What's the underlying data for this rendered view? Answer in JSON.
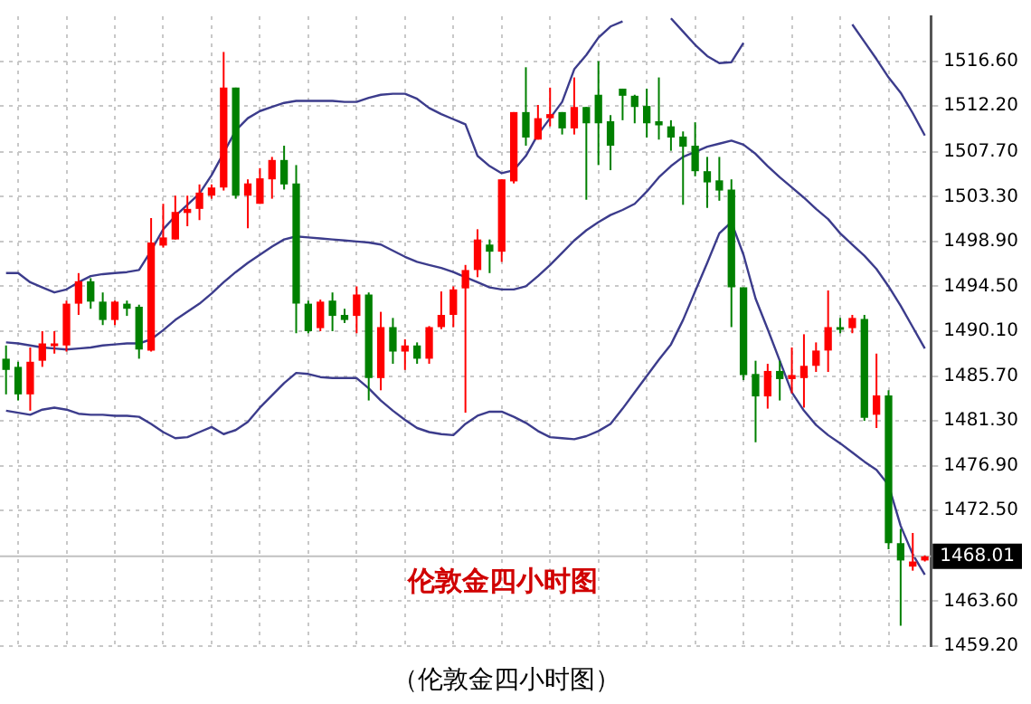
{
  "chart_data": {
    "type": "candlestick",
    "categories": [
      null,
      null,
      null,
      null,
      null,
      null,
      null,
      null,
      null,
      null,
      null,
      null,
      null,
      null,
      null,
      null,
      null,
      null,
      null,
      null,
      null,
      null,
      null,
      null,
      null,
      null,
      null,
      null,
      null,
      null,
      null,
      null,
      null,
      null,
      null,
      null,
      null,
      null,
      null,
      null,
      null,
      null,
      null,
      null,
      null,
      null,
      null,
      null,
      null,
      null,
      null,
      null,
      null,
      null,
      null,
      null,
      null,
      null,
      null,
      null,
      null,
      null,
      null,
      null,
      null,
      null,
      null,
      null,
      null,
      null,
      null,
      null,
      null,
      null,
      null,
      null,
      null
    ],
    "ohlc": [
      [
        1487.4,
        1488.7,
        1483.9,
        1486.3
      ],
      [
        1486.6,
        1487.1,
        1483.3,
        1483.9
      ],
      [
        1483.9,
        1488.5,
        1482.3,
        1487.1
      ],
      [
        1487.2,
        1490.1,
        1486.6,
        1488.9
      ],
      [
        1488.7,
        1490.1,
        1487.9,
        1488.9
      ],
      [
        1488.7,
        1493.1,
        1488.1,
        1492.8
      ],
      [
        1492.8,
        1495.8,
        1491.7,
        1495.0
      ],
      [
        1495.0,
        1495.3,
        1492.3,
        1493.0
      ],
      [
        1493.0,
        1493.9,
        1490.7,
        1491.2
      ],
      [
        1491.2,
        1493.1,
        1490.7,
        1493.0
      ],
      [
        1492.8,
        1493.1,
        1491.6,
        1492.3
      ],
      [
        1492.5,
        1492.7,
        1487.4,
        1488.3
      ],
      [
        1488.2,
        1501.2,
        1488.1,
        1498.8
      ],
      [
        1498.5,
        1502.6,
        1498.3,
        1499.3
      ],
      [
        1499.1,
        1503.4,
        1499.1,
        1501.8
      ],
      [
        1501.7,
        1503.4,
        1500.4,
        1502.1
      ],
      [
        1502.1,
        1504.5,
        1501.0,
        1503.7
      ],
      [
        1503.4,
        1504.5,
        1503.1,
        1504.2
      ],
      [
        1504.2,
        1517.5,
        1503.9,
        1514.0
      ],
      [
        1514.0,
        1514.0,
        1503.1,
        1503.4
      ],
      [
        1503.4,
        1505.0,
        1500.2,
        1504.6
      ],
      [
        1502.6,
        1506.1,
        1502.6,
        1505.1
      ],
      [
        1505.0,
        1507.2,
        1503.1,
        1506.9
      ],
      [
        1506.9,
        1508.3,
        1504.0,
        1504.5
      ],
      [
        1504.6,
        1506.4,
        1489.9,
        1492.8
      ],
      [
        1492.8,
        1493.1,
        1489.9,
        1490.1
      ],
      [
        1490.4,
        1493.2,
        1490.1,
        1493.0
      ],
      [
        1493.1,
        1493.9,
        1490.1,
        1491.6
      ],
      [
        1491.7,
        1492.3,
        1490.9,
        1491.2
      ],
      [
        1491.6,
        1494.5,
        1489.9,
        1493.7
      ],
      [
        1493.7,
        1493.9,
        1483.3,
        1485.5
      ],
      [
        1485.5,
        1492.0,
        1484.3,
        1490.5
      ],
      [
        1490.5,
        1491.4,
        1486.9,
        1488.1
      ],
      [
        1488.1,
        1489.3,
        1486.3,
        1488.7
      ],
      [
        1488.7,
        1489.0,
        1486.9,
        1487.4
      ],
      [
        1487.4,
        1490.6,
        1486.9,
        1490.5
      ],
      [
        1490.5,
        1494.0,
        1490.3,
        1491.7
      ],
      [
        1491.7,
        1494.5,
        1490.5,
        1494.2
      ],
      [
        1494.3,
        1496.6,
        1482.1,
        1496.1
      ],
      [
        1496.1,
        1500.1,
        1495.4,
        1499.1
      ],
      [
        1498.6,
        1499.1,
        1495.8,
        1497.9
      ],
      [
        1497.9,
        1505.0,
        1496.9,
        1505.0
      ],
      [
        1504.8,
        1511.6,
        1504.6,
        1511.6
      ],
      [
        1511.6,
        1516.0,
        1508.3,
        1509.1
      ],
      [
        1508.9,
        1512.3,
        1508.9,
        1511.0
      ],
      [
        1511.0,
        1514.0,
        1510.2,
        1511.4
      ],
      [
        1511.6,
        1511.6,
        1509.4,
        1510.0
      ],
      [
        1510.0,
        1515.0,
        1509.4,
        1512.1
      ],
      [
        1512.1,
        1512.1,
        1503.0,
        1510.5
      ],
      [
        1513.3,
        1516.6,
        1506.4,
        1510.5
      ],
      [
        1510.7,
        1511.3,
        1505.9,
        1508.3
      ],
      [
        1513.9,
        1513.9,
        1510.8,
        1513.2
      ],
      [
        1513.2,
        1513.3,
        1510.5,
        1512.1
      ],
      [
        1512.2,
        1513.9,
        1509.1,
        1510.5
      ],
      [
        1510.7,
        1515.0,
        1508.9,
        1510.3
      ],
      [
        1510.2,
        1510.8,
        1507.8,
        1509.1
      ],
      [
        1509.2,
        1509.7,
        1502.5,
        1508.2
      ],
      [
        1508.3,
        1510.6,
        1505.3,
        1505.8
      ],
      [
        1505.8,
        1507.2,
        1502.2,
        1504.7
      ],
      [
        1504.9,
        1507.2,
        1502.9,
        1503.9
      ],
      [
        1504.0,
        1505.0,
        1490.5,
        1494.4
      ],
      [
        1494.4,
        1494.4,
        1485.3,
        1485.8
      ],
      [
        1485.9,
        1487.2,
        1479.2,
        1483.7
      ],
      [
        1483.7,
        1486.9,
        1482.5,
        1486.2
      ],
      [
        1486.2,
        1487.2,
        1483.3,
        1485.4
      ],
      [
        1485.4,
        1488.5,
        1484.0,
        1485.8
      ],
      [
        1485.5,
        1489.8,
        1482.6,
        1486.7
      ],
      [
        1486.7,
        1489.0,
        1486.1,
        1488.2
      ],
      [
        1488.2,
        1494.1,
        1486.1,
        1490.5
      ],
      [
        1490.5,
        1491.4,
        1489.9,
        1490.4
      ],
      [
        1490.4,
        1491.7,
        1489.9,
        1491.4
      ],
      [
        1491.3,
        1491.7,
        1481.3,
        1481.6
      ],
      [
        1481.9,
        1487.9,
        1480.6,
        1483.8
      ],
      [
        1483.8,
        1484.3,
        1468.7,
        1469.3
      ],
      [
        1469.3,
        1470.7,
        1461.2,
        1467.6
      ],
      [
        1467.0,
        1470.3,
        1466.6,
        1467.5
      ],
      [
        1467.6,
        1468.1,
        1467.5,
        1468.0
      ]
    ],
    "colors": [
      "#008000",
      "#008000",
      "#ff0000",
      "#ff0000",
      "#ff0000",
      "#ff0000",
      "#ff0000",
      "#008000",
      "#008000",
      "#ff0000",
      "#008000",
      "#008000",
      "#ff0000",
      "#ff0000",
      "#ff0000",
      "#ff0000",
      "#ff0000",
      "#ff0000",
      "#ff0000",
      "#008000",
      "#ff0000",
      "#ff0000",
      "#ff0000",
      "#008000",
      "#008000",
      "#008000",
      "#ff0000",
      "#008000",
      "#008000",
      "#ff0000",
      "#008000",
      "#ff0000",
      "#008000",
      "#ff0000",
      "#008000",
      "#ff0000",
      "#ff0000",
      "#ff0000",
      "#ff0000",
      "#ff0000",
      "#008000",
      "#ff0000",
      "#ff0000",
      "#008000",
      "#ff0000",
      "#ff0000",
      "#008000",
      "#ff0000",
      "#008000",
      "#008000",
      "#008000",
      "#008000",
      "#008000",
      "#008000",
      "#008000",
      "#008000",
      "#008000",
      "#008000",
      "#008000",
      "#008000",
      "#008000",
      "#008000",
      "#008000",
      "#ff0000",
      "#008000",
      "#ff0000",
      "#ff0000",
      "#ff0000",
      "#ff0000",
      "#008000",
      "#ff0000",
      "#008000",
      "#ff0000",
      "#008000",
      "#008000",
      "#ff0000",
      "#ff0000"
    ],
    "series": [
      {
        "type": "line",
        "color": "#3c3c8c",
        "values": [
          1495.8,
          1495.8,
          1494.9,
          1494.4,
          1493.9,
          1494.2,
          1494.9,
          1495.5,
          1495.7,
          1495.8,
          1495.9,
          1496.1,
          1498.0,
          1500.1,
          1501.4,
          1502.5,
          1503.6,
          1505.4,
          1507.6,
          1509.8,
          1511.0,
          1511.7,
          1512.1,
          1512.5,
          1512.7,
          1512.7,
          1512.7,
          1512.7,
          1512.6,
          1512.6,
          1513.0,
          1513.3,
          1513.4,
          1513.4,
          1512.9,
          1512.0,
          1511.4,
          1510.9,
          1510.4,
          1507.3,
          1506.3,
          1505.6,
          1505.9,
          1507.3,
          1509.4,
          1511.0,
          1512.6,
          1515.8,
          1517.2,
          1518.9,
          1520.0,
          1520.5,
          null,
          null,
          null,
          1520.8,
          1519.5,
          1518.2,
          1517.1,
          1516.4,
          1516.5,
          1518.4,
          null,
          null,
          null,
          null,
          null,
          null,
          null,
          null,
          1520.2,
          1518.5,
          1516.8,
          1515.0,
          1513.5,
          1511.5,
          1509.3
        ]
      },
      {
        "type": "line",
        "color": "#3c3c8c",
        "values": [
          1489.0,
          1488.9,
          1488.7,
          1488.5,
          1488.4,
          1488.3,
          1488.4,
          1488.5,
          1488.7,
          1488.8,
          1488.9,
          1488.9,
          1489.3,
          1490.2,
          1491.2,
          1492.0,
          1492.8,
          1493.8,
          1494.9,
          1495.9,
          1496.8,
          1497.6,
          1498.4,
          1499.1,
          1499.4,
          1499.3,
          1499.2,
          1499.1,
          1499.0,
          1498.9,
          1498.8,
          1498.6,
          1498.0,
          1497.4,
          1496.9,
          1496.6,
          1496.3,
          1495.9,
          1495.4,
          1494.9,
          1494.4,
          1494.2,
          1494.2,
          1494.5,
          1495.5,
          1496.6,
          1497.8,
          1499.0,
          1500.0,
          1500.8,
          1501.5,
          1502.0,
          1502.6,
          1503.8,
          1505.2,
          1506.3,
          1507.2,
          1507.7,
          1508.2,
          1508.5,
          1508.8,
          1508.4,
          1507.5,
          1506.3,
          1505.2,
          1504.2,
          1503.2,
          1502.1,
          1501.1,
          1499.7,
          1498.6,
          1497.5,
          1496.2,
          1494.5,
          1492.6,
          1490.5,
          1488.4
        ]
      },
      {
        "type": "line",
        "color": "#3c3c8c",
        "values": [
          1482.3,
          1482.1,
          1481.9,
          1482.4,
          1482.6,
          1482.4,
          1482.0,
          1481.9,
          1481.9,
          1481.8,
          1481.8,
          1481.7,
          1481.0,
          1480.2,
          1479.6,
          1479.7,
          1480.2,
          1480.7,
          1480.0,
          1480.4,
          1481.2,
          1482.6,
          1483.8,
          1485.0,
          1486.0,
          1485.9,
          1485.6,
          1485.5,
          1485.5,
          1485.5,
          1484.5,
          1483.3,
          1482.3,
          1481.4,
          1480.6,
          1480.2,
          1480.0,
          1479.9,
          1481.0,
          1481.8,
          1482.2,
          1482.2,
          1481.7,
          1481.1,
          1480.3,
          1479.7,
          1479.6,
          1479.5,
          1479.8,
          1480.3,
          1481.0,
          1482.5,
          1484.1,
          1485.7,
          1487.3,
          1488.8,
          1491.2,
          1494.0,
          1496.8,
          1499.7,
          1500.8,
          1497.6,
          1493.3,
          1490.3,
          1487.2,
          1484.1,
          1482.3,
          1480.9,
          1479.9,
          1479.1,
          1478.2,
          1477.3,
          1476.5,
          1475.0,
          1471.0,
          1468.2,
          1466.2
        ]
      }
    ],
    "ylim": [
      1459.2,
      1521.0
    ],
    "yticks": [
      {
        "value": 1459.2,
        "label": "1459.20"
      },
      {
        "value": 1463.6,
        "label": "1463.60"
      },
      {
        "value": 1472.5,
        "label": "1472.50"
      },
      {
        "value": 1476.9,
        "label": "1476.90"
      },
      {
        "value": 1481.3,
        "label": "1481.30"
      },
      {
        "value": 1485.7,
        "label": "1485.70"
      },
      {
        "value": 1490.1,
        "label": "1490.10"
      },
      {
        "value": 1494.5,
        "label": "1494.50"
      },
      {
        "value": 1498.9,
        "label": "1498.90"
      },
      {
        "value": 1503.3,
        "label": "1503.30"
      },
      {
        "value": 1507.7,
        "label": "1507.70"
      },
      {
        "value": 1512.2,
        "label": "1512.20"
      },
      {
        "value": 1516.6,
        "label": "1516.60"
      }
    ],
    "ref_lines": [
      {
        "axis": "y",
        "value": 1468.01,
        "label": "1468.01",
        "color": "#c0c0c0"
      }
    ],
    "annotations": [
      "伦敦金四小时图",
      "（伦敦金四小时图）"
    ],
    "grid": true,
    "legend": false,
    "tick_labels": "y"
  }
}
